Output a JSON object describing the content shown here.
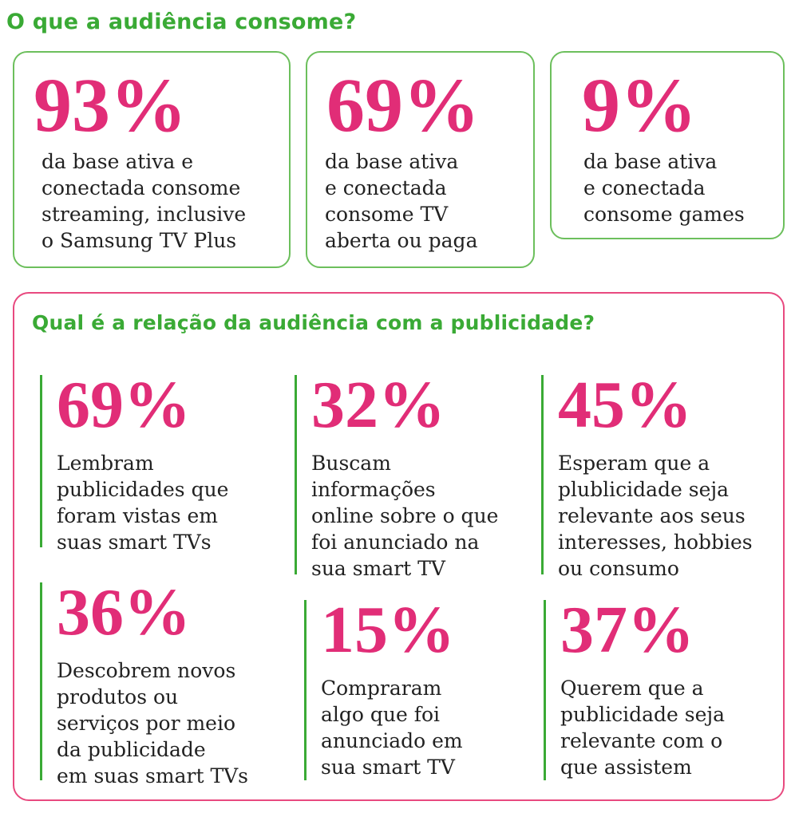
{
  "section1": {
    "title": "O que a audiência consome?",
    "cards": [
      {
        "value": "93%",
        "text": "da base ativa e\nconectada consome\nstreaming, inclusive\no Samsung TV Plus"
      },
      {
        "value": "69%",
        "text": "da base ativa\ne conectada\nconsome TV\naberta ou paga"
      },
      {
        "value": "9%",
        "text": "da base ativa\ne conectada\nconsome games"
      }
    ]
  },
  "section2": {
    "title": "Qual é a relação da audiência com a publicidade?",
    "stats": [
      {
        "value": "69%",
        "text": "Lembram\npublicidades que\nforam vistas em\nsuas smart TVs"
      },
      {
        "value": "32%",
        "text": "Buscam\ninformações\nonline sobre o que\nfoi anunciado na\nsua smart TV"
      },
      {
        "value": "45%",
        "text": "Esperam que a\nplublicidade seja\nrelevante aos seus\ninteresses, hobbies\nou consumo"
      },
      {
        "value": "36%",
        "text": "Descobrem novos\nprodutos ou\nserviços por meio\nda publicidade\nem suas smart TVs"
      },
      {
        "value": "15%",
        "text": "Compraram\nalgo que foi\nanunciado em\nsua smart TV"
      },
      {
        "value": "37%",
        "text": "Querem que a\npublicidade seja\nrelevante com o\nque assistem"
      }
    ]
  },
  "colors": {
    "accent_green": "#3aaa35",
    "accent_pink": "#e12d77",
    "card_border": "#6cbf5c",
    "panel_border": "#e8497f"
  }
}
